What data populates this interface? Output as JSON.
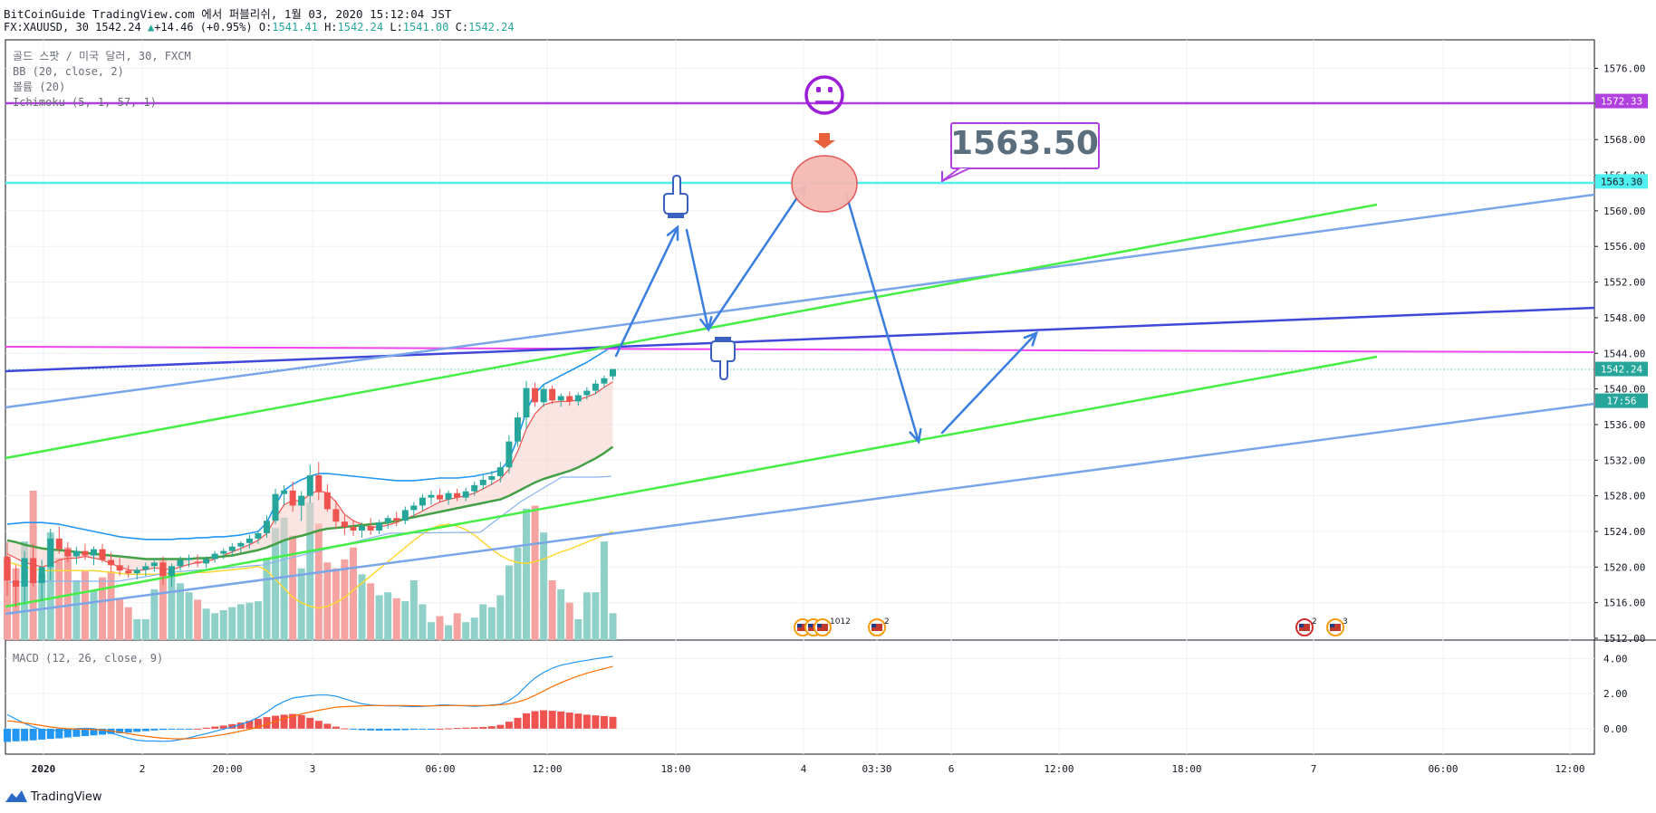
{
  "header": {
    "line1": "BitCoinGuide TradingView.com 에서 퍼블리쉬, 1월 03, 2020 15:12:04 JST",
    "symbol": "FX:XAUUSD, 30",
    "last": "1542.24",
    "change_arrow": "▲",
    "change": "+14.46 (+0.95%)",
    "o_label": "O:",
    "o_value": "1541.41",
    "h_label": "H:",
    "h_value": "1542.24",
    "l_label": "L:",
    "l_value": "1541.00",
    "c_label": "C:",
    "c_value": "1542.24"
  },
  "legend": {
    "title": "골드 스팟 / 미국 달러, 30, FXCM",
    "bb": "BB (20, close, 2)",
    "volume": "볼륨 (20)",
    "ichimoku": "Ichimoku (5, 1, 57, 1)",
    "macd": "MACD (12, 26, close, 9)"
  },
  "footer": {
    "brand": "TradingView",
    "logo_icon": "tradingview-logo-icon"
  },
  "annotations": {
    "target_label": "1563.50",
    "face_icon": "neutral-face-icon",
    "arrow_icon": "down-arrow-icon",
    "hand_up_icon": "pointing-up-hand-icon",
    "hand_down_icon": "pointing-down-hand-icon",
    "event_icons": [
      "us-flag-event-icon",
      "us-flag-event-icon"
    ],
    "event_counts": [
      "10",
      "12",
      "2",
      "2",
      "3"
    ]
  },
  "colors": {
    "up": "#26a69a",
    "down": "#ef5350",
    "bb": "#2196f3",
    "ichimoku_fast": "#ef5350",
    "ichimoku_slow": "#43a047",
    "ema": "#fdd835",
    "resistance": "#b040e0",
    "support_cyan": "#4ff0f0",
    "trend_green": "#44ee44",
    "trend_blue": "#7aa5e8",
    "trend_navy": "#3f48d8",
    "magenta": "#ee44ee",
    "arrows": "#3a7ee0"
  },
  "chart_data": {
    "type": "candlestick",
    "symbol": "FX:XAUUSD",
    "interval": "30",
    "x_tick_labels": [
      "2020",
      "2",
      "20:00",
      "3",
      "06:00",
      "12:00",
      "18:00",
      "4",
      "03:30",
      "6",
      "12:00",
      "18:00",
      "7",
      "06:00",
      "12:00"
    ],
    "price_axis": {
      "ticks": [
        1512,
        1516,
        1520,
        1524,
        1528,
        1532,
        1536,
        1540,
        1544,
        1548,
        1552,
        1556,
        1560,
        1564,
        1568,
        1572,
        1576
      ],
      "range": [
        1511.8,
        1579.2
      ]
    },
    "macd_axis": {
      "ticks": [
        0.0,
        2.0,
        4.0
      ],
      "range": [
        -1.45,
        5.05
      ]
    },
    "price_tags": [
      {
        "value": "1572.33",
        "color": "#b040e0"
      },
      {
        "value": "1563.30",
        "color": "#4ff0f0"
      },
      {
        "value": "1542.24",
        "color": "#26a69a"
      },
      {
        "value": "17:56",
        "color": "#26a69a"
      }
    ],
    "candles": [
      [
        1521.2,
        1522.8,
        1516.8,
        1518.5
      ],
      [
        1518.5,
        1520.2,
        1515.5,
        1517.8
      ],
      [
        1517.8,
        1521.8,
        1515.8,
        1521.0
      ],
      [
        1521.0,
        1522.5,
        1517.8,
        1518.2
      ],
      [
        1518.2,
        1520.8,
        1516.2,
        1520.0
      ],
      [
        1520.0,
        1524.3,
        1518.5,
        1523.2
      ],
      [
        1523.2,
        1524.5,
        1521.5,
        1522.0
      ],
      [
        1522.0,
        1522.8,
        1520.5,
        1521.2
      ],
      [
        1521.2,
        1522.3,
        1520.3,
        1521.8
      ],
      [
        1521.8,
        1522.6,
        1520.8,
        1521.3
      ],
      [
        1521.3,
        1522.3,
        1520.2,
        1522.0
      ],
      [
        1522.0,
        1522.6,
        1520.5,
        1520.8
      ],
      [
        1520.8,
        1521.6,
        1519.5,
        1520.2
      ],
      [
        1520.2,
        1521.0,
        1519.0,
        1519.6
      ],
      [
        1519.6,
        1520.2,
        1518.8,
        1519.3
      ],
      [
        1519.3,
        1520.0,
        1518.6,
        1519.7
      ],
      [
        1519.7,
        1520.5,
        1519.0,
        1520.1
      ],
      [
        1520.1,
        1521.0,
        1519.5,
        1520.5
      ],
      [
        1520.5,
        1521.2,
        1518.0,
        1519.0
      ],
      [
        1519.0,
        1520.4,
        1517.8,
        1520.1
      ],
      [
        1520.1,
        1521.2,
        1519.6,
        1520.8
      ],
      [
        1520.8,
        1521.4,
        1520.0,
        1521.0
      ],
      [
        1520.6,
        1521.4,
        1520.0,
        1520.4
      ],
      [
        1520.4,
        1521.2,
        1519.9,
        1520.9
      ],
      [
        1520.9,
        1521.8,
        1520.5,
        1521.5
      ],
      [
        1521.5,
        1522.1,
        1520.9,
        1521.8
      ],
      [
        1521.8,
        1522.7,
        1521.2,
        1522.3
      ],
      [
        1522.3,
        1522.9,
        1521.6,
        1522.7
      ],
      [
        1522.7,
        1523.6,
        1522.1,
        1523.2
      ],
      [
        1523.2,
        1524.1,
        1522.6,
        1523.8
      ],
      [
        1523.8,
        1525.8,
        1523.3,
        1525.2
      ],
      [
        1525.2,
        1528.8,
        1524.8,
        1528.2
      ],
      [
        1528.2,
        1529.2,
        1527.0,
        1528.6
      ],
      [
        1528.6,
        1529.6,
        1526.2,
        1526.9
      ],
      [
        1526.9,
        1528.5,
        1525.2,
        1528.0
      ],
      [
        1528.0,
        1531.5,
        1527.2,
        1530.3
      ],
      [
        1530.3,
        1531.8,
        1527.5,
        1528.4
      ],
      [
        1528.4,
        1529.3,
        1526.2,
        1526.5
      ],
      [
        1526.5,
        1527.5,
        1524.3,
        1525.1
      ],
      [
        1525.1,
        1525.8,
        1523.6,
        1524.5
      ],
      [
        1524.5,
        1525.3,
        1523.5,
        1524.1
      ],
      [
        1524.1,
        1525.0,
        1523.3,
        1524.6
      ],
      [
        1524.6,
        1525.5,
        1523.6,
        1524.1
      ],
      [
        1524.1,
        1525.3,
        1523.7,
        1525.0
      ],
      [
        1525.0,
        1525.8,
        1524.3,
        1525.5
      ],
      [
        1525.5,
        1526.2,
        1524.6,
        1525.2
      ],
      [
        1525.2,
        1526.8,
        1524.8,
        1526.4
      ],
      [
        1526.4,
        1527.3,
        1525.6,
        1526.9
      ],
      [
        1526.9,
        1528.2,
        1526.3,
        1527.8
      ],
      [
        1527.8,
        1528.6,
        1527.0,
        1528.1
      ],
      [
        1528.1,
        1528.8,
        1527.3,
        1527.6
      ],
      [
        1527.6,
        1528.6,
        1527.0,
        1528.3
      ],
      [
        1528.3,
        1528.8,
        1527.4,
        1527.8
      ],
      [
        1527.8,
        1528.9,
        1527.4,
        1528.5
      ],
      [
        1528.5,
        1529.6,
        1528.0,
        1529.2
      ],
      [
        1529.2,
        1530.3,
        1528.7,
        1529.8
      ],
      [
        1529.8,
        1530.8,
        1529.2,
        1530.2
      ],
      [
        1530.2,
        1531.8,
        1529.5,
        1531.2
      ],
      [
        1531.2,
        1534.8,
        1530.5,
        1534.1
      ],
      [
        1534.1,
        1537.4,
        1533.5,
        1536.8
      ],
      [
        1536.8,
        1540.9,
        1535.5,
        1540.1
      ],
      [
        1540.1,
        1540.7,
        1538.0,
        1538.5
      ],
      [
        1538.5,
        1540.6,
        1538.0,
        1540.0
      ],
      [
        1540.0,
        1540.4,
        1538.3,
        1538.7
      ],
      [
        1538.7,
        1539.5,
        1538.0,
        1539.2
      ],
      [
        1539.2,
        1539.7,
        1538.1,
        1538.6
      ],
      [
        1538.6,
        1539.6,
        1538.1,
        1539.3
      ],
      [
        1539.3,
        1540.2,
        1538.8,
        1539.8
      ],
      [
        1539.8,
        1541.0,
        1539.4,
        1540.6
      ],
      [
        1540.6,
        1541.5,
        1540.1,
        1541.2
      ],
      [
        1541.41,
        1542.24,
        1541.0,
        1542.24
      ]
    ],
    "bb_upper": [
      1524.8,
      1524.9,
      1525.0,
      1525.0,
      1525.0,
      1524.9,
      1524.8,
      1524.6,
      1524.4,
      1524.2,
      1524.0,
      1523.8,
      1523.6,
      1523.4,
      1523.3,
      1523.2,
      1523.1,
      1523.1,
      1523.1,
      1523.1,
      1523.2,
      1523.2,
      1523.3,
      1523.3,
      1523.4,
      1523.4,
      1523.5,
      1523.6,
      1523.8,
      1524.0,
      1525.0,
      1527.0,
      1528.6,
      1529.3,
      1529.8,
      1530.2,
      1530.5,
      1530.5,
      1530.4,
      1530.3,
      1530.2,
      1530.1,
      1530.0,
      1529.9,
      1529.8,
      1529.7,
      1529.7,
      1529.7,
      1529.8,
      1529.9,
      1530.0,
      1530.0,
      1530.0,
      1530.1,
      1530.2,
      1530.4,
      1530.6,
      1530.9,
      1532.0,
      1534.5,
      1537.5,
      1539.5,
      1540.5,
      1541.0,
      1541.5,
      1542.0,
      1542.5,
      1543.0,
      1543.6,
      1544.2,
      1544.8
    ],
    "ichimoku_fast": [
      1521.5,
      1521.0,
      1520.5,
      1520.3,
      1520.0,
      1520.3,
      1520.8,
      1521.0,
      1521.0,
      1521.2,
      1521.0,
      1520.8,
      1520.4,
      1520.0,
      1519.7,
      1519.6,
      1519.7,
      1519.9,
      1519.8,
      1519.7,
      1520.0,
      1520.3,
      1520.5,
      1520.6,
      1520.9,
      1521.3,
      1521.7,
      1522.1,
      1522.5,
      1523.0,
      1523.8,
      1525.5,
      1527.0,
      1527.5,
      1527.4,
      1528.2,
      1528.6,
      1528.3,
      1527.3,
      1525.9,
      1525.2,
      1524.8,
      1524.5,
      1524.5,
      1524.7,
      1525.0,
      1525.4,
      1525.8,
      1526.3,
      1526.8,
      1527.3,
      1527.6,
      1527.8,
      1528.0,
      1528.3,
      1528.8,
      1529.3,
      1529.9,
      1531.0,
      1533.0,
      1535.5,
      1537.2,
      1538.2,
      1538.5,
      1538.6,
      1538.6,
      1538.8,
      1539.1,
      1539.5,
      1540.2,
      1540.8
    ],
    "ichimoku_slow": [
      1523.0,
      1522.8,
      1522.5,
      1522.3,
      1522.1,
      1522.0,
      1521.9,
      1521.8,
      1521.7,
      1521.6,
      1521.5,
      1521.4,
      1521.3,
      1521.2,
      1521.1,
      1521.0,
      1520.9,
      1520.9,
      1520.9,
      1520.9,
      1520.9,
      1520.9,
      1521.0,
      1521.0,
      1521.1,
      1521.2,
      1521.3,
      1521.5,
      1521.7,
      1521.9,
      1522.2,
      1522.6,
      1523.0,
      1523.3,
      1523.5,
      1523.8,
      1524.1,
      1524.3,
      1524.4,
      1524.5,
      1524.6,
      1524.7,
      1524.8,
      1524.9,
      1525.0,
      1525.2,
      1525.4,
      1525.6,
      1525.8,
      1526.0,
      1526.2,
      1526.4,
      1526.6,
      1526.8,
      1527.0,
      1527.2,
      1527.4,
      1527.6,
      1528.0,
      1528.5,
      1529.0,
      1529.5,
      1529.9,
      1530.2,
      1530.5,
      1530.8,
      1531.2,
      1531.7,
      1532.2,
      1532.8,
      1533.5
    ],
    "ema": [
      1520.6,
      1520.3,
      1520.0,
      1519.8,
      1519.6,
      1519.6,
      1519.6,
      1519.6,
      1519.6,
      1519.6,
      1519.6,
      1519.5,
      1519.4,
      1519.3,
      1519.2,
      1519.2,
      1519.2,
      1519.2,
      1519.2,
      1519.2,
      1519.3,
      1519.3,
      1519.4,
      1519.4,
      1519.5,
      1519.6,
      1519.7,
      1519.8,
      1519.9,
      1520.1,
      1519.6,
      1518.6,
      1517.6,
      1516.6,
      1516.0,
      1515.6,
      1515.4,
      1515.6,
      1516.0,
      1516.6,
      1517.4,
      1518.2,
      1519.0,
      1519.8,
      1520.6,
      1521.4,
      1522.2,
      1523.0,
      1523.7,
      1524.3,
      1524.7,
      1524.8,
      1524.6,
      1524.2,
      1523.6,
      1522.8,
      1522.0,
      1521.3,
      1520.8,
      1520.5,
      1520.4,
      1520.6,
      1520.9,
      1521.3,
      1521.7,
      1522.0,
      1522.4,
      1522.8,
      1523.2,
      1523.6,
      1524.0
    ],
    "volumes": [
      0.54,
      0.48,
      0.66,
      1.0,
      0.44,
      0.72,
      0.55,
      0.62,
      0.4,
      0.46,
      0.33,
      0.42,
      0.46,
      0.28,
      0.22,
      0.14,
      0.14,
      0.34,
      0.55,
      0.46,
      0.38,
      0.32,
      0.27,
      0.21,
      0.18,
      0.2,
      0.22,
      0.24,
      0.25,
      0.26,
      0.55,
      0.75,
      0.82,
      0.7,
      0.48,
      0.92,
      0.78,
      0.52,
      0.48,
      0.54,
      0.62,
      0.44,
      0.38,
      0.3,
      0.32,
      0.28,
      0.26,
      0.4,
      0.24,
      0.12,
      0.16,
      0.1,
      0.18,
      0.12,
      0.15,
      0.24,
      0.22,
      0.3,
      0.5,
      0.62,
      0.88,
      0.9,
      0.72,
      0.4,
      0.34,
      0.25,
      0.14,
      0.32,
      0.32,
      0.66,
      0.18
    ],
    "macd_line": [
      0.8,
      0.55,
      0.3,
      0.1,
      -0.05,
      -0.1,
      -0.1,
      -0.05,
      0.0,
      0.02,
      0.0,
      -0.1,
      -0.25,
      -0.4,
      -0.55,
      -0.65,
      -0.7,
      -0.7,
      -0.72,
      -0.7,
      -0.62,
      -0.52,
      -0.4,
      -0.28,
      -0.15,
      -0.02,
      0.1,
      0.25,
      0.42,
      0.65,
      0.95,
      1.3,
      1.55,
      1.75,
      1.82,
      1.88,
      1.92,
      1.92,
      1.85,
      1.7,
      1.55,
      1.42,
      1.35,
      1.32,
      1.3,
      1.3,
      1.28,
      1.26,
      1.27,
      1.3,
      1.35,
      1.35,
      1.32,
      1.3,
      1.28,
      1.3,
      1.35,
      1.4,
      1.6,
      1.95,
      2.45,
      2.9,
      3.2,
      3.45,
      3.62,
      3.72,
      3.82,
      3.9,
      3.98,
      4.05,
      4.12
    ],
    "macd_signal": [
      0.45,
      0.4,
      0.33,
      0.25,
      0.18,
      0.1,
      0.04,
      0.0,
      -0.02,
      -0.03,
      -0.05,
      -0.08,
      -0.13,
      -0.2,
      -0.28,
      -0.36,
      -0.43,
      -0.49,
      -0.54,
      -0.57,
      -0.58,
      -0.57,
      -0.53,
      -0.48,
      -0.41,
      -0.33,
      -0.24,
      -0.14,
      -0.03,
      0.1,
      0.25,
      0.42,
      0.58,
      0.72,
      0.84,
      0.95,
      1.05,
      1.14,
      1.22,
      1.26,
      1.28,
      1.3,
      1.32,
      1.32,
      1.32,
      1.32,
      1.32,
      1.31,
      1.3,
      1.3,
      1.31,
      1.32,
      1.32,
      1.32,
      1.32,
      1.32,
      1.33,
      1.36,
      1.42,
      1.52,
      1.68,
      1.9,
      2.15,
      2.4,
      2.62,
      2.82,
      3.0,
      3.16,
      3.3,
      3.42,
      3.55
    ],
    "macd_hist": [
      -0.75,
      -0.72,
      -0.7,
      -0.66,
      -0.62,
      -0.58,
      -0.55,
      -0.5,
      -0.46,
      -0.42,
      -0.38,
      -0.34,
      -0.3,
      -0.26,
      -0.22,
      -0.18,
      -0.14,
      -0.1,
      -0.07,
      -0.05,
      -0.04,
      -0.02,
      0.0,
      0.06,
      0.12,
      0.18,
      0.26,
      0.35,
      0.45,
      0.56,
      0.66,
      0.74,
      0.8,
      0.84,
      0.78,
      0.62,
      0.45,
      0.28,
      0.12,
      0.02,
      -0.05,
      -0.08,
      -0.1,
      -0.11,
      -0.1,
      -0.09,
      -0.08,
      -0.06,
      -0.04,
      -0.02,
      0.0,
      0.02,
      0.04,
      0.06,
      0.08,
      0.1,
      0.14,
      0.22,
      0.4,
      0.62,
      0.88,
      1.0,
      1.05,
      1.02,
      0.98,
      0.92,
      0.86,
      0.8,
      0.76,
      0.72,
      0.68
    ]
  }
}
